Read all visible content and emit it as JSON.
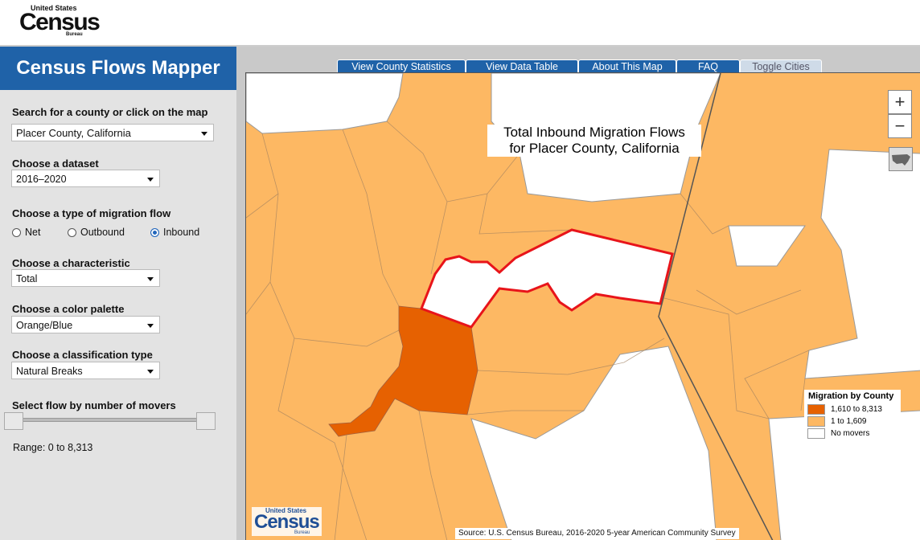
{
  "header": {
    "logo_top": "United States",
    "logo_main": "Census",
    "logo_sub": "Bureau"
  },
  "sidebar": {
    "title": "Census Flows Mapper",
    "search_label": "Search for a county or click on the map",
    "search_value": "Placer County, California",
    "dataset_label": "Choose a dataset",
    "dataset_value": "2016–2020",
    "flow_label": "Choose a type of migration flow",
    "flow_options": [
      "Net",
      "Outbound",
      "Inbound"
    ],
    "characteristic_label": "Choose a characteristic",
    "characteristic_value": "Total",
    "palette_label": "Choose a color palette",
    "palette_value": "Orange/Blue",
    "classification_label": "Choose a classification type",
    "classification_value": "Natural Breaks",
    "slider_label": "Select flow by number of movers",
    "range_text": "Range: 0 to 8,313"
  },
  "tabs": [
    "View County Statistics",
    "View Data Table",
    "About This Map",
    "FAQ",
    "Toggle Cities"
  ],
  "map": {
    "title_line1": "Total Inbound Migration Flows",
    "title_line2": "for Placer County, California",
    "zoom_in": "+",
    "zoom_out": "−",
    "legend": {
      "title": "Migration by County",
      "items": [
        {
          "label": "1,610 to 8,313",
          "color": "#e66101"
        },
        {
          "label": "1 to 1,609",
          "color": "#fdb863"
        },
        {
          "label": "No movers",
          "color": "#ffffff"
        }
      ]
    },
    "logo": {
      "top": "United States",
      "main": "Census",
      "sub": "Bureau"
    },
    "source": "Source: U.S. Census Bureau, 2016-2020 5-year American Community Survey"
  }
}
